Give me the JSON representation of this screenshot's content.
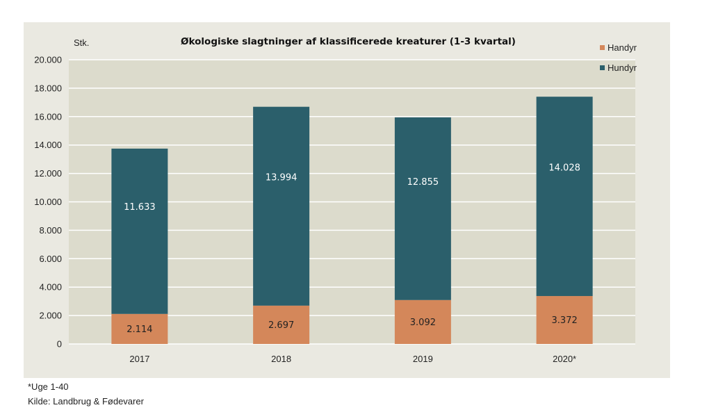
{
  "chart_data": {
    "type": "bar",
    "stacked": true,
    "title": "Økologiske slagtninger af klassificerede kreaturer (1-3 kvartal)",
    "unit_label": "Stk.",
    "categories": [
      "2017",
      "2018",
      "2019",
      "2020*"
    ],
    "series": [
      {
        "name": "Handyr",
        "color": "#d4875a",
        "values": [
          2114,
          2697,
          3092,
          3372
        ],
        "labels": [
          "2.114",
          "2.697",
          "3.092",
          "3.372"
        ],
        "label_color": "#222222"
      },
      {
        "name": "Hundyr",
        "color": "#2b5f6b",
        "values": [
          11633,
          13994,
          12855,
          14028
        ],
        "labels": [
          "11.633",
          "13.994",
          "12.855",
          "14.028"
        ],
        "label_color": "#ffffff"
      }
    ],
    "ylim": [
      0,
      20000
    ],
    "yticks": [
      0,
      2000,
      4000,
      6000,
      8000,
      10000,
      12000,
      14000,
      16000,
      18000,
      20000
    ],
    "ytick_labels": [
      "0",
      "2.000",
      "4.000",
      "6.000",
      "8.000",
      "10.000",
      "12.000",
      "14.000",
      "16.000",
      "18.000",
      "20.000"
    ],
    "grid": true,
    "legend_position": "top-right",
    "plot_background": "#dcdbcc",
    "grid_color": "#ffffff"
  },
  "footnotes": {
    "note": "*Uge 1-40",
    "source": "Kilde: Landbrug & Fødevarer"
  }
}
